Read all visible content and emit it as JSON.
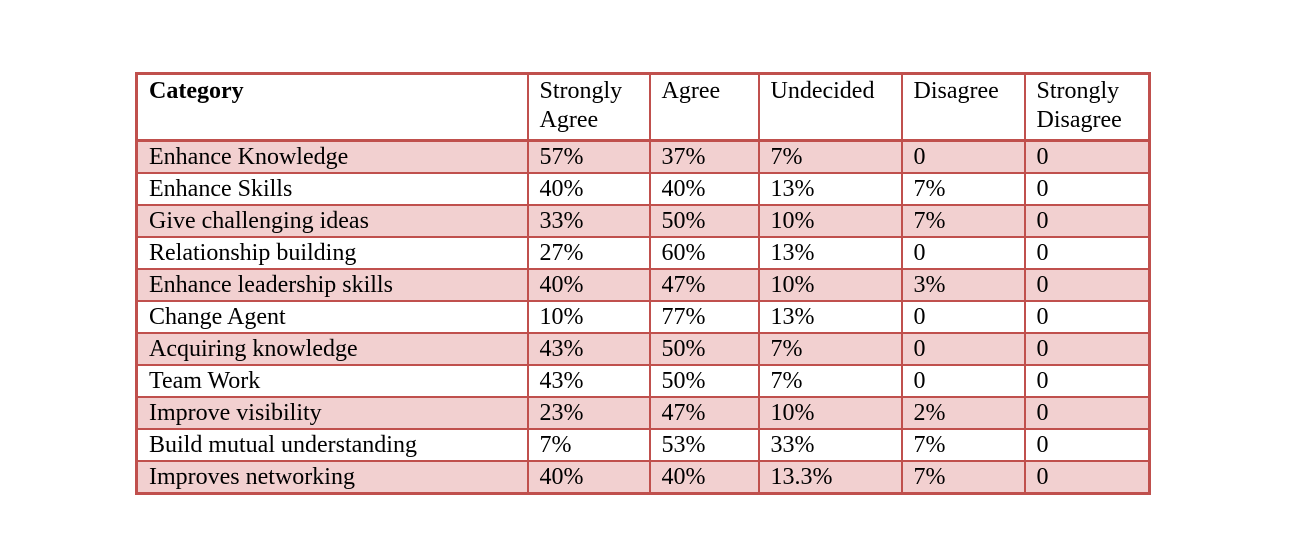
{
  "table": {
    "headers": [
      {
        "line1": "Category",
        "line2": ""
      },
      {
        "line1": "Strongly",
        "line2": "Agree"
      },
      {
        "line1": "Agree",
        "line2": ""
      },
      {
        "line1": "Undecided",
        "line2": ""
      },
      {
        "line1": "Disagree",
        "line2": ""
      },
      {
        "line1": "Strongly",
        "line2": "Disagree"
      }
    ],
    "rows": [
      [
        "Enhance Knowledge",
        "57%",
        "37%",
        "7%",
        "0",
        "0"
      ],
      [
        "Enhance Skills",
        "40%",
        "40%",
        "13%",
        "7%",
        "0"
      ],
      [
        "Give challenging ideas",
        "33%",
        "50%",
        "10%",
        "7%",
        "0"
      ],
      [
        "Relationship building",
        "27%",
        "60%",
        "13%",
        "0",
        "0"
      ],
      [
        "Enhance leadership skills",
        "40%",
        "47%",
        "10%",
        "3%",
        "0"
      ],
      [
        "Change Agent",
        "10%",
        "77%",
        "13%",
        "0",
        "0"
      ],
      [
        "Acquiring knowledge",
        "43%",
        "50%",
        "7%",
        "0",
        "0"
      ],
      [
        "Team Work",
        "43%",
        "50%",
        "7%",
        "0",
        "0"
      ],
      [
        "Improve visibility",
        "23%",
        "47%",
        "10%",
        "2%",
        "0"
      ],
      [
        "Build mutual understanding",
        "7%",
        "53%",
        "33%",
        "7%",
        "0"
      ],
      [
        "Improves networking",
        "40%",
        "40%",
        "13.3%",
        "7%",
        "0"
      ]
    ]
  },
  "colors": {
    "border": "#c0504d",
    "band": "#f2d0d0",
    "plain": "#ffffff"
  }
}
